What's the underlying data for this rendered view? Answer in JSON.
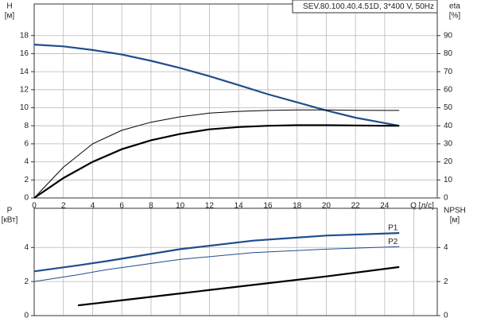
{
  "chart_data": [
    {
      "type": "line",
      "title": "SEV.80.100.40.4.51D, 3*400 V, 50Hz",
      "ylabel": "H",
      "ylabel_unit": "[м]",
      "y2label": "eta",
      "y2label_unit": "[%]",
      "xlabel": "Q [л/с]",
      "x": [
        0,
        2,
        4,
        6,
        8,
        10,
        12,
        14,
        16,
        18,
        20,
        22,
        24,
        25
      ],
      "xlim": [
        0,
        27.6
      ],
      "xticks": [
        0,
        2,
        4,
        6,
        8,
        10,
        12,
        14,
        16,
        18,
        20,
        22,
        24
      ],
      "ylim": [
        0,
        21.5
      ],
      "yticks": [
        0,
        2,
        4,
        6,
        8,
        10,
        12,
        14,
        16,
        18
      ],
      "y2lim": [
        0,
        107.5
      ],
      "y2ticks": [
        0,
        10,
        20,
        30,
        40,
        50,
        60,
        70,
        80,
        90
      ],
      "grid": true,
      "series": [
        {
          "color": "#1f4e8c",
          "linewidth": 2.2,
          "values": [
            17,
            16.8,
            16.4,
            15.9,
            15.2,
            14.4,
            13.5,
            12.5,
            11.5,
            10.6,
            9.7,
            8.9,
            8.3,
            8.0
          ]
        },
        {
          "color": "#000000",
          "linewidth": 1,
          "axis": "y2",
          "values": [
            0,
            17,
            30,
            37.5,
            42,
            45,
            47,
            48,
            48.5,
            48.8,
            48.8,
            48.6,
            48.5,
            48.5
          ]
        },
        {
          "color": "#000000",
          "linewidth": 2.2,
          "axis": "y2",
          "values": [
            0,
            11,
            20,
            27,
            32,
            35.5,
            38,
            39.3,
            40,
            40.3,
            40.3,
            40.2,
            40,
            40
          ]
        }
      ]
    },
    {
      "type": "line",
      "ylabel": "P",
      "ylabel_unit": "[кВт]",
      "y2label": "NPSH",
      "y2label_unit": "[м]",
      "x": [
        0,
        3,
        5,
        10,
        15,
        20,
        25
      ],
      "xlim": [
        0,
        27.6
      ],
      "xticks": [
        0,
        2,
        4,
        6,
        8,
        10,
        12,
        14,
        16,
        18,
        20,
        22,
        24,
        26
      ],
      "ylim": [
        0,
        6.3
      ],
      "yticks": [
        0,
        2,
        4
      ],
      "y2lim": [
        0,
        6.3
      ],
      "y2ticks": [
        0,
        2,
        4
      ],
      "grid": true,
      "series": [
        {
          "name": "P1",
          "color": "#1f4e8c",
          "linewidth": 2.2,
          "values": [
            2.6,
            2.95,
            3.2,
            3.9,
            4.4,
            4.7,
            4.85
          ]
        },
        {
          "name": "P2",
          "color": "#1f4e8c",
          "linewidth": 1,
          "values": [
            2.0,
            2.4,
            2.7,
            3.3,
            3.7,
            3.9,
            4.05
          ]
        },
        {
          "color": "#000000",
          "linewidth": 2.2,
          "axis": "y2",
          "values": [
            null,
            0.6,
            0.8,
            1.3,
            1.8,
            2.3,
            2.85
          ]
        }
      ]
    }
  ]
}
